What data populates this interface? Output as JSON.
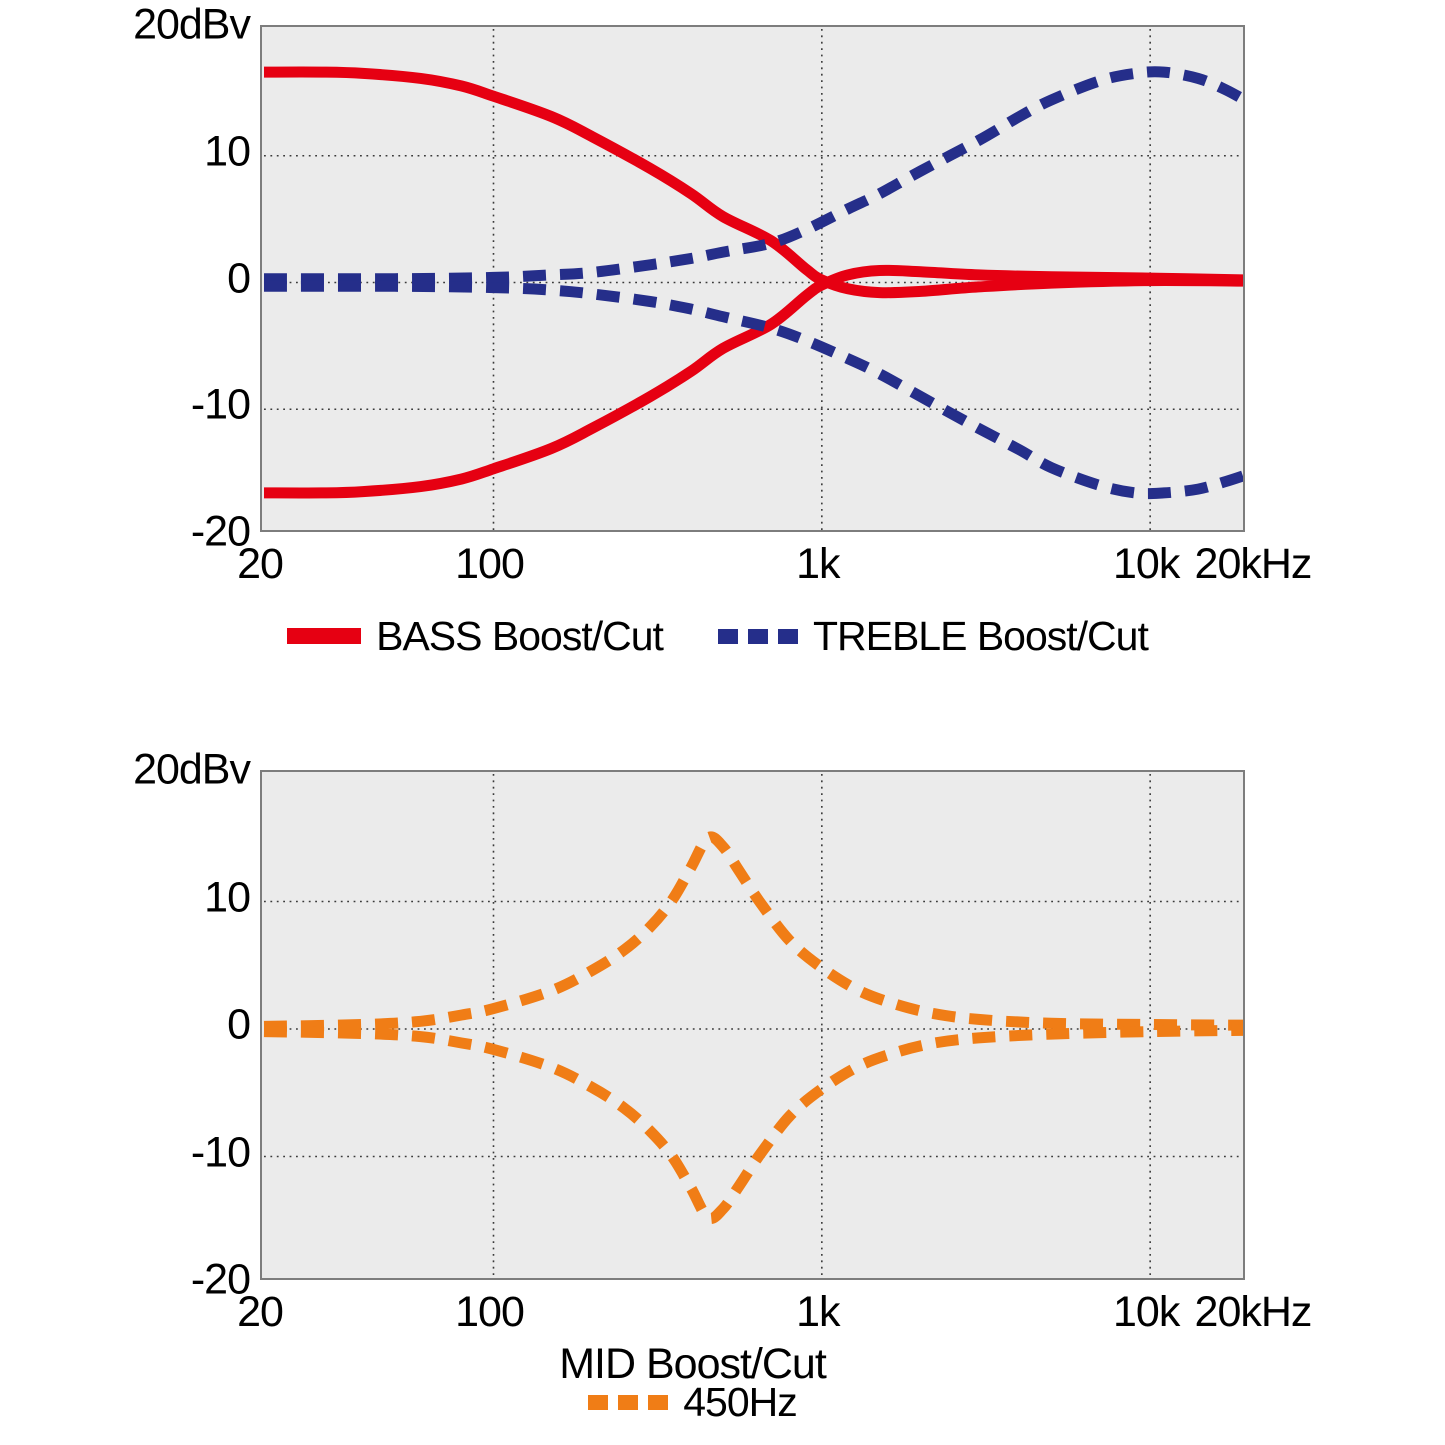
{
  "colors": {
    "bass": "#e60012",
    "treble": "#252e8a",
    "mid": "#f07d16",
    "grid": "#3a3a3a",
    "plot_background": "#ebebeb",
    "plot_border": "#7d7d7d",
    "text": "#000000",
    "page_background": "#ffffff"
  },
  "chart_data": [
    {
      "type": "line",
      "name": "bass-treble-boost-cut-response",
      "x_axis": {
        "scale": "log",
        "min_hz": 20,
        "max_hz": 20000,
        "tick_hz": [
          20,
          100,
          1000,
          10000,
          20000
        ],
        "tick_labels": [
          "20",
          "100",
          "1k",
          "10k",
          "20kHz"
        ],
        "grid_hz": [
          100,
          1000,
          10000
        ]
      },
      "y_axis": {
        "ylim": [
          -20,
          20
        ],
        "tick_values": [
          20,
          10,
          0,
          -10,
          -20
        ],
        "tick_labels": [
          "20dBv",
          "10",
          "0",
          "-10",
          "-20"
        ],
        "grid_values": [
          10,
          0,
          -10
        ]
      },
      "legend": [
        {
          "label": "BASS Boost/Cut",
          "style": "solid",
          "color_key": "bass"
        },
        {
          "label": "TREBLE Boost/Cut",
          "style": "dashed",
          "color_key": "treble"
        }
      ],
      "series": [
        {
          "name": "bass-boost",
          "color_key": "bass",
          "style": "solid",
          "points": [
            [
              20,
              16.6
            ],
            [
              30,
              16.6
            ],
            [
              40,
              16.5
            ],
            [
              60,
              16.1
            ],
            [
              80,
              15.5
            ],
            [
              100,
              14.7
            ],
            [
              150,
              13.1
            ],
            [
              200,
              11.5
            ],
            [
              300,
              9.0
            ],
            [
              400,
              7.0
            ],
            [
              500,
              5.2
            ],
            [
              700,
              3.3
            ],
            [
              900,
              1.0
            ],
            [
              1000,
              0.2
            ],
            [
              1200,
              -0.5
            ],
            [
              1500,
              -0.8
            ],
            [
              2000,
              -0.7
            ],
            [
              3000,
              -0.35
            ],
            [
              5000,
              -0.05
            ],
            [
              10000,
              0.15
            ],
            [
              20000,
              0.1
            ]
          ]
        },
        {
          "name": "bass-cut",
          "color_key": "bass",
          "style": "solid",
          "points": [
            [
              20,
              -16.6
            ],
            [
              30,
              -16.6
            ],
            [
              40,
              -16.5
            ],
            [
              60,
              -16.1
            ],
            [
              80,
              -15.5
            ],
            [
              100,
              -14.7
            ],
            [
              150,
              -13.1
            ],
            [
              200,
              -11.5
            ],
            [
              300,
              -9.0
            ],
            [
              400,
              -7.0
            ],
            [
              500,
              -5.2
            ],
            [
              700,
              -3.3
            ],
            [
              900,
              -1.0
            ],
            [
              1000,
              -0.2
            ],
            [
              1200,
              0.6
            ],
            [
              1500,
              0.95
            ],
            [
              2000,
              0.85
            ],
            [
              3000,
              0.6
            ],
            [
              5000,
              0.45
            ],
            [
              10000,
              0.35
            ],
            [
              20000,
              0.2
            ]
          ]
        },
        {
          "name": "treble-boost",
          "color_key": "treble",
          "style": "dashed",
          "points": [
            [
              20,
              0.3
            ],
            [
              50,
              0.3
            ],
            [
              100,
              0.4
            ],
            [
              150,
              0.6
            ],
            [
              200,
              0.8
            ],
            [
              300,
              1.4
            ],
            [
              400,
              1.9
            ],
            [
              500,
              2.4
            ],
            [
              700,
              3.1
            ],
            [
              900,
              4.2
            ],
            [
              1200,
              5.8
            ],
            [
              1500,
              7.0
            ],
            [
              2000,
              8.8
            ],
            [
              3000,
              11.2
            ],
            [
              4000,
              13.1
            ],
            [
              5000,
              14.4
            ],
            [
              7000,
              15.9
            ],
            [
              9000,
              16.5
            ],
            [
              11000,
              16.6
            ],
            [
              14000,
              16.1
            ],
            [
              17000,
              15.2
            ],
            [
              20000,
              14.2
            ]
          ]
        },
        {
          "name": "treble-cut",
          "color_key": "treble",
          "style": "dashed",
          "points": [
            [
              20,
              -0.3
            ],
            [
              50,
              -0.3
            ],
            [
              100,
              -0.4
            ],
            [
              150,
              -0.6
            ],
            [
              200,
              -0.9
            ],
            [
              300,
              -1.5
            ],
            [
              400,
              -2.1
            ],
            [
              500,
              -2.7
            ],
            [
              700,
              -3.6
            ],
            [
              900,
              -4.6
            ],
            [
              1200,
              -6.0
            ],
            [
              1500,
              -7.2
            ],
            [
              2000,
              -9.0
            ],
            [
              3000,
              -11.5
            ],
            [
              4000,
              -13.2
            ],
            [
              5000,
              -14.6
            ],
            [
              7000,
              -16.0
            ],
            [
              9000,
              -16.6
            ],
            [
              11000,
              -16.6
            ],
            [
              14000,
              -16.3
            ],
            [
              17000,
              -15.7
            ],
            [
              20000,
              -15.1
            ]
          ]
        }
      ]
    },
    {
      "type": "line",
      "name": "mid-boost-cut-response",
      "xlabel": "MID Boost/Cut",
      "x_axis": {
        "scale": "log",
        "min_hz": 20,
        "max_hz": 20000,
        "tick_hz": [
          20,
          100,
          1000,
          10000,
          20000
        ],
        "tick_labels": [
          "20",
          "100",
          "1k",
          "10k",
          "20kHz"
        ],
        "grid_hz": [
          100,
          1000,
          10000
        ]
      },
      "y_axis": {
        "ylim": [
          -20,
          20
        ],
        "tick_values": [
          20,
          10,
          0,
          -10,
          -20
        ],
        "tick_labels": [
          "20dBv",
          "10",
          "0",
          "-10",
          "-20"
        ],
        "grid_values": [
          10,
          0,
          -10
        ]
      },
      "legend": [
        {
          "label": "450Hz",
          "style": "dashed",
          "color_key": "mid"
        }
      ],
      "series": [
        {
          "name": "mid-boost",
          "color_key": "mid",
          "style": "dashed",
          "points": [
            [
              20,
              0.2
            ],
            [
              40,
              0.35
            ],
            [
              60,
              0.6
            ],
            [
              80,
              1.1
            ],
            [
              100,
              1.6
            ],
            [
              150,
              3.0
            ],
            [
              200,
              4.6
            ],
            [
              250,
              6.2
            ],
            [
              300,
              8.0
            ],
            [
              350,
              10.1
            ],
            [
              400,
              12.7
            ],
            [
              450,
              15.0
            ],
            [
              500,
              14.3
            ],
            [
              560,
              12.4
            ],
            [
              650,
              9.9
            ],
            [
              800,
              6.9
            ],
            [
              1000,
              4.8
            ],
            [
              1300,
              3.0
            ],
            [
              1700,
              1.9
            ],
            [
              2200,
              1.2
            ],
            [
              3000,
              0.75
            ],
            [
              5000,
              0.45
            ],
            [
              10000,
              0.35
            ],
            [
              20000,
              0.3
            ]
          ]
        },
        {
          "name": "mid-cut",
          "color_key": "mid",
          "style": "dashed",
          "points": [
            [
              20,
              -0.2
            ],
            [
              40,
              -0.35
            ],
            [
              60,
              -0.6
            ],
            [
              80,
              -1.1
            ],
            [
              100,
              -1.6
            ],
            [
              150,
              -3.0
            ],
            [
              200,
              -4.6
            ],
            [
              250,
              -6.2
            ],
            [
              300,
              -8.0
            ],
            [
              350,
              -10.0
            ],
            [
              400,
              -12.5
            ],
            [
              450,
              -14.8
            ],
            [
              500,
              -14.1
            ],
            [
              560,
              -12.3
            ],
            [
              650,
              -9.8
            ],
            [
              800,
              -6.8
            ],
            [
              1000,
              -4.7
            ],
            [
              1300,
              -2.9
            ],
            [
              1700,
              -1.8
            ],
            [
              2200,
              -1.1
            ],
            [
              3000,
              -0.7
            ],
            [
              5000,
              -0.4
            ],
            [
              10000,
              -0.2
            ],
            [
              20000,
              -0.1
            ]
          ]
        }
      ]
    }
  ]
}
